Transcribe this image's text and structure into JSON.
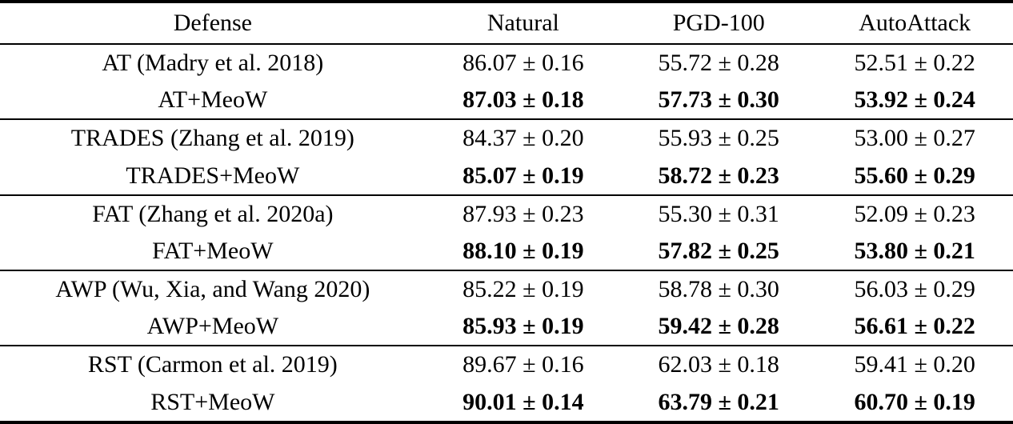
{
  "table": {
    "columns": [
      "Defense",
      "Natural",
      "PGD-100",
      "AutoAttack"
    ],
    "text_color": "#000000",
    "background_color": "#ffffff",
    "groups": [
      {
        "rows": [
          {
            "defense": "AT (Madry et al. 2018)",
            "natural": "86.07 ± 0.16",
            "pgd100": "55.72 ± 0.28",
            "autoattack": "52.51 ± 0.22",
            "bold": false
          },
          {
            "defense": "AT+MeoW",
            "natural": "87.03 ± 0.18",
            "pgd100": "57.73 ± 0.30",
            "autoattack": "53.92 ± 0.24",
            "bold": true
          }
        ]
      },
      {
        "rows": [
          {
            "defense": "TRADES (Zhang et al. 2019)",
            "natural": "84.37 ± 0.20",
            "pgd100": "55.93 ± 0.25",
            "autoattack": "53.00 ± 0.27",
            "bold": false
          },
          {
            "defense": "TRADES+MeoW",
            "natural": "85.07 ± 0.19",
            "pgd100": "58.72 ± 0.23",
            "autoattack": "55.60 ± 0.29",
            "bold": true
          }
        ]
      },
      {
        "rows": [
          {
            "defense": "FAT (Zhang et al. 2020a)",
            "natural": "87.93 ± 0.23",
            "pgd100": "55.30 ± 0.31",
            "autoattack": "52.09 ± 0.23",
            "bold": false
          },
          {
            "defense": "FAT+MeoW",
            "natural": "88.10 ± 0.19",
            "pgd100": "57.82 ± 0.25",
            "autoattack": "53.80 ± 0.21",
            "bold": true
          }
        ]
      },
      {
        "rows": [
          {
            "defense": "AWP (Wu, Xia, and Wang 2020)",
            "natural": "85.22 ± 0.19",
            "pgd100": "58.78 ± 0.30",
            "autoattack": "56.03 ± 0.29",
            "bold": false
          },
          {
            "defense": "AWP+MeoW",
            "natural": "85.93 ± 0.19",
            "pgd100": "59.42 ± 0.28",
            "autoattack": "56.61 ± 0.22",
            "bold": true
          }
        ]
      },
      {
        "rows": [
          {
            "defense": "RST (Carmon et al. 2019)",
            "natural": "89.67 ± 0.16",
            "pgd100": "62.03 ± 0.18",
            "autoattack": "59.41 ± 0.20",
            "bold": false
          },
          {
            "defense": "RST+MeoW",
            "natural": "90.01 ± 0.14",
            "pgd100": "63.79 ± 0.21",
            "autoattack": "60.70 ± 0.19",
            "bold": true
          }
        ]
      }
    ]
  },
  "chart_data": {
    "type": "table",
    "columns": [
      "Defense",
      "Natural",
      "PGD-100",
      "AutoAttack"
    ],
    "rows": [
      [
        "AT (Madry et al. 2018)",
        "86.07 ± 0.16",
        "55.72 ± 0.28",
        "52.51 ± 0.22"
      ],
      [
        "AT+MeoW",
        "87.03 ± 0.18",
        "57.73 ± 0.30",
        "53.92 ± 0.24"
      ],
      [
        "TRADES (Zhang et al. 2019)",
        "84.37 ± 0.20",
        "55.93 ± 0.25",
        "53.00 ± 0.27"
      ],
      [
        "TRADES+MeoW",
        "85.07 ± 0.19",
        "58.72 ± 0.23",
        "55.60 ± 0.29"
      ],
      [
        "FAT (Zhang et al. 2020a)",
        "87.93 ± 0.23",
        "55.30 ± 0.31",
        "52.09 ± 0.23"
      ],
      [
        "FAT+MeoW",
        "88.10 ± 0.19",
        "57.82 ± 0.25",
        "53.80 ± 0.21"
      ],
      [
        "AWP (Wu, Xia, and Wang 2020)",
        "85.22 ± 0.19",
        "58.78 ± 0.30",
        "56.03 ± 0.29"
      ],
      [
        "AWP+MeoW",
        "85.93 ± 0.19",
        "59.42 ± 0.28",
        "56.61 ± 0.22"
      ],
      [
        "RST (Carmon et al. 2019)",
        "89.67 ± 0.16",
        "62.03 ± 0.18",
        "59.41 ± 0.20"
      ],
      [
        "RST+MeoW",
        "90.01 ± 0.14",
        "63.79 ± 0.21",
        "60.70 ± 0.19"
      ]
    ]
  }
}
